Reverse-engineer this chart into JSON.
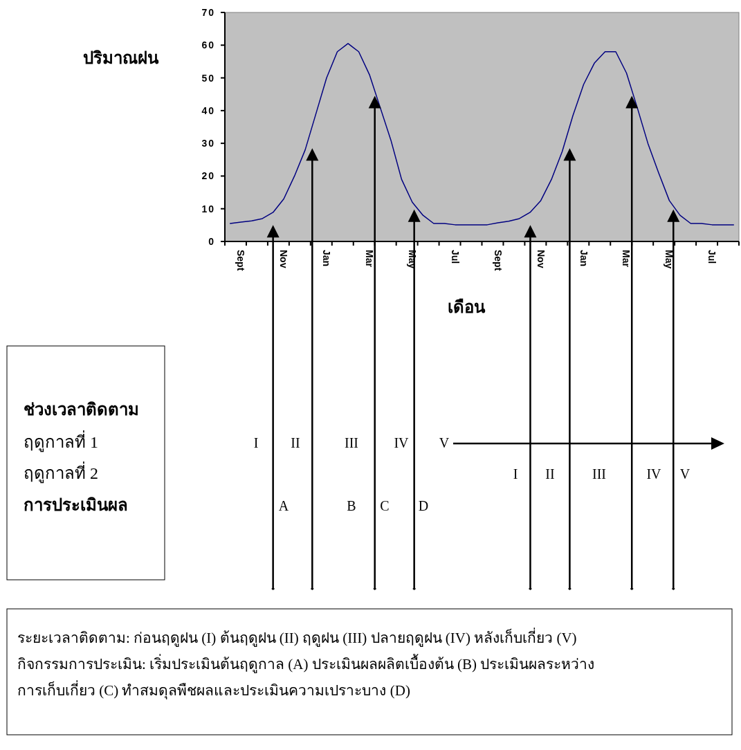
{
  "chart_data": {
    "type": "line",
    "xlabel": "เดือน",
    "ylabel": "ปริมาณฝน",
    "categories": [
      null,
      "Sept",
      null,
      null,
      null,
      "Nov",
      null,
      null,
      null,
      "Jan",
      null,
      null,
      null,
      "Mar",
      null,
      null,
      null,
      "May",
      null,
      null,
      null,
      "Jul",
      null,
      null,
      null,
      "Sept",
      null,
      null,
      null,
      "Nov",
      null,
      null,
      null,
      "Jan",
      null,
      null,
      null,
      "Mar",
      null,
      null,
      null,
      "May",
      null,
      null,
      null,
      "Jul",
      null,
      null
    ],
    "series": [
      {
        "color": "#000080",
        "values": [
          5.5,
          5.9,
          6.3,
          7,
          8.9,
          13,
          20,
          28,
          39,
          50,
          58,
          60.5,
          58,
          51,
          41,
          31,
          19,
          12,
          8,
          5.5,
          5.5,
          5.1,
          5.1,
          5.1,
          5.1,
          5.7,
          6.2,
          7,
          8.9,
          12.5,
          19,
          27.5,
          38.5,
          48,
          54.5,
          58,
          58,
          51.5,
          41,
          30,
          21,
          12.5,
          8,
          5.5,
          5.5,
          5.1,
          5.1,
          5.1
        ]
      }
    ],
    "ylim": [
      0,
      70
    ],
    "yticks": [
      0,
      10,
      20,
      30,
      40,
      50,
      60,
      70
    ],
    "grid": false,
    "marker": "none",
    "line_style": "solid",
    "annotations": [
      "ช่วงเวลาติดตาม",
      "ฤดูกาลที่ 1",
      "ฤดูกาลที่ 2",
      "การประเมินผล",
      "I",
      "II",
      "III",
      "IV",
      "V",
      "I",
      "II",
      "III",
      "IV",
      "V",
      "A",
      "B",
      "C",
      "D",
      "ระยะเวลาติดตาม: ก่อนฤดูฝน (I) ต้นฤดูฝน (II) ฤดูฝน (III) ปลายฤดูฝน (IV) หลังเก็บเกี่ยว  (V)",
      "กิจกรรมการประเมิน: เริ่มประเมินต้นฤดูกาล (A) ประเมินผลผลิตเบื้องต้น (B) ประเมินผลระหว่าง",
      "การเก็บเกี่ยว (C) ทำสมดุลพืชผลและประเมินความเปราะบาง (D)"
    ]
  }
}
